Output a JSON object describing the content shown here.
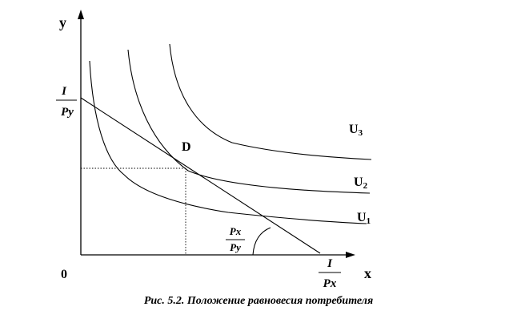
{
  "axes": {
    "y_label": "y",
    "x_label": "x",
    "origin_label": "0"
  },
  "budget_line": {
    "y_intercept_num": "I",
    "y_intercept_den": "Py",
    "x_intercept_num": "I",
    "x_intercept_den": "Px",
    "slope_num": "Px",
    "slope_den": "Py"
  },
  "equilibrium": {
    "label": "D"
  },
  "curves": [
    {
      "name": "U",
      "sub": "1"
    },
    {
      "name": "U",
      "sub": "2"
    },
    {
      "name": "U",
      "sub": "3"
    }
  ],
  "caption": "Рис. 5.2.  Положение равновесия потребителя"
}
